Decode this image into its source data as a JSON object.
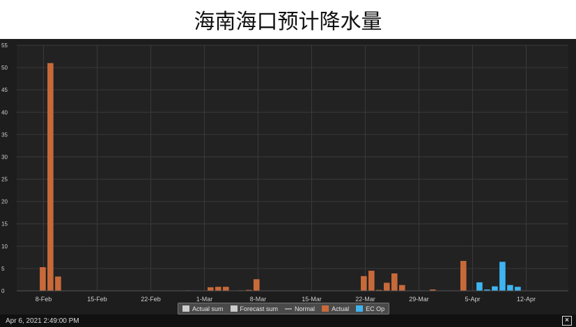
{
  "page": {
    "title": "海南海口预计降水量",
    "timestamp": "Apr 6, 2021 2:49:00 PM",
    "icons": {
      "export": "close-box-icon"
    }
  },
  "chart_data": {
    "type": "bar",
    "ylim": [
      0,
      55
    ],
    "yticks": [
      0,
      5,
      10,
      15,
      20,
      25,
      30,
      35,
      40,
      45,
      50,
      55
    ],
    "x_tick_labels": [
      "8-Feb",
      "15-Feb",
      "22-Feb",
      "1-Mar",
      "8-Mar",
      "15-Mar",
      "22-Mar",
      "29-Mar",
      "5-Apr",
      "12-Apr"
    ],
    "x_tick_days": [
      0,
      7,
      14,
      21,
      28,
      35,
      42,
      49,
      56,
      63
    ],
    "grid": true,
    "legend": [
      "Actual sum",
      "Forecast sum",
      "Normal",
      "Actual",
      "EC Op"
    ],
    "legend_position": "bottom",
    "colors": {
      "background": "#1d1d1d",
      "grid": "#3a3a3a",
      "axis_text": "#cfcfcf",
      "actual": "#c8693a",
      "ec_op": "#3eb5f1",
      "actual_sum": "#cccccc",
      "forecast_sum": "#cccccc",
      "normal": "#9a9a9a"
    },
    "series": [
      {
        "name": "Actual",
        "points": [
          {
            "day": -0.1,
            "value": 5.3
          },
          {
            "day": 0.9,
            "value": 51.0
          },
          {
            "day": 1.9,
            "value": 3.2
          },
          {
            "day": 18.8,
            "value": 0.1
          },
          {
            "day": 21.8,
            "value": 0.8
          },
          {
            "day": 22.8,
            "value": 0.9
          },
          {
            "day": 23.8,
            "value": 0.9
          },
          {
            "day": 25.8,
            "value": 0.1
          },
          {
            "day": 26.8,
            "value": 0.2
          },
          {
            "day": 27.8,
            "value": 2.6
          },
          {
            "day": 41.8,
            "value": 3.3
          },
          {
            "day": 42.8,
            "value": 4.5
          },
          {
            "day": 43.8,
            "value": 0.2
          },
          {
            "day": 44.8,
            "value": 1.8
          },
          {
            "day": 45.8,
            "value": 3.9
          },
          {
            "day": 46.8,
            "value": 1.3
          },
          {
            "day": 50.8,
            "value": 0.3
          },
          {
            "day": 54.8,
            "value": 6.7
          }
        ]
      },
      {
        "name": "EC Op",
        "points": [
          {
            "day": 56.9,
            "value": 1.9
          },
          {
            "day": 57.9,
            "value": 0.3
          },
          {
            "day": 58.9,
            "value": 1.0
          },
          {
            "day": 59.9,
            "value": 6.5
          },
          {
            "day": 60.9,
            "value": 1.3
          },
          {
            "day": 61.9,
            "value": 0.9
          }
        ]
      }
    ]
  }
}
